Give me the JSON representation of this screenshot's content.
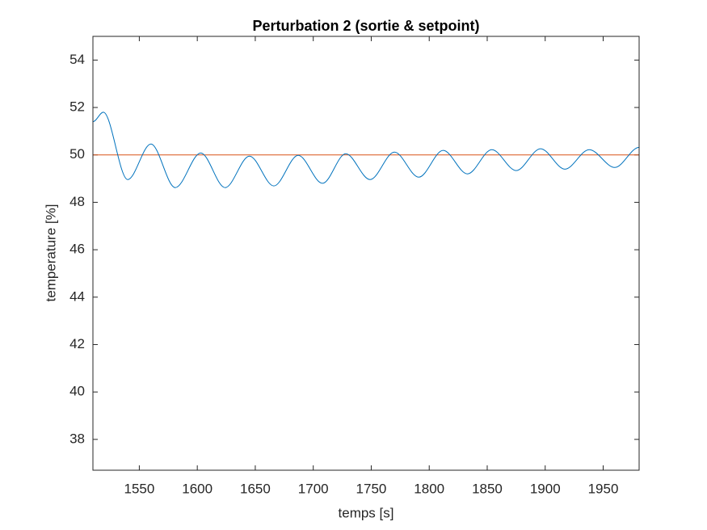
{
  "chart_data": {
    "type": "line",
    "title": "Perturbation 2 (sortie & setpoint)",
    "x_label": "temps [s]",
    "y_label": "temperature [%]",
    "xlim": [
      1510,
      1981
    ],
    "ylim": [
      36.7,
      55
    ],
    "xticks": [
      1550,
      1600,
      1650,
      1700,
      1750,
      1800,
      1850,
      1900,
      1950
    ],
    "yticks": [
      38,
      40,
      42,
      44,
      46,
      48,
      50,
      52,
      54
    ],
    "grid": false,
    "series": [
      {
        "color": "#0072bd",
        "x": [
          1510,
          1519,
          1540,
          1560,
          1581,
          1603,
          1624,
          1645,
          1666,
          1687,
          1708,
          1728,
          1749,
          1770,
          1791,
          1812,
          1833,
          1854,
          1875,
          1896,
          1917,
          1938,
          1960,
          1981
        ],
        "values": [
          51.4,
          51.8,
          48.96,
          50.46,
          48.62,
          50.08,
          48.62,
          49.95,
          48.69,
          49.98,
          48.8,
          50.05,
          48.96,
          50.12,
          49.06,
          50.19,
          49.2,
          50.22,
          49.34,
          50.26,
          49.4,
          50.22,
          49.47,
          50.32
        ]
      },
      {
        "color": "#d95319",
        "x": [
          1510,
          1981
        ],
        "values": [
          50,
          50
        ]
      }
    ]
  }
}
